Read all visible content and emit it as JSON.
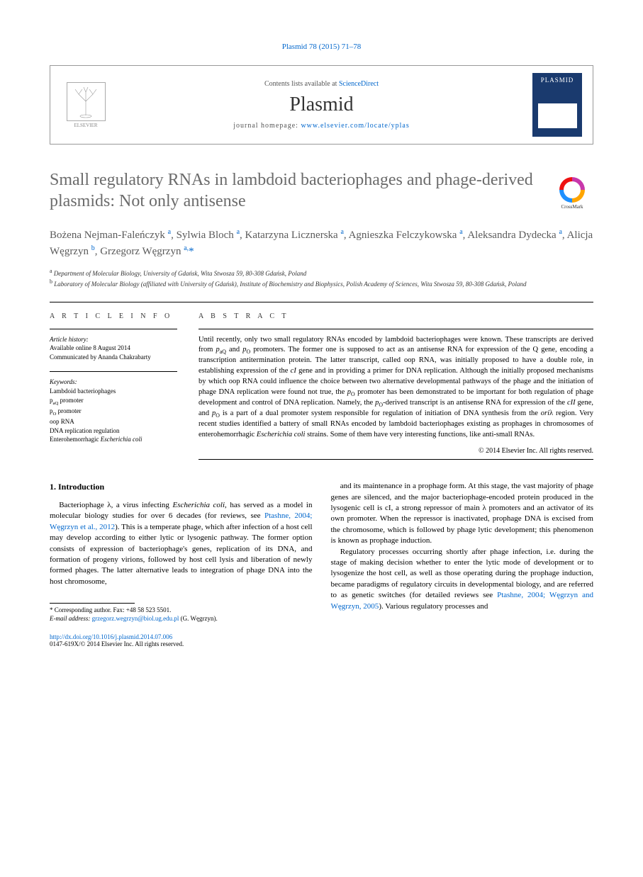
{
  "journal_ref": "Plasmid 78 (2015) 71–78",
  "header": {
    "elsevier": "ELSEVIER",
    "contents_prefix": "Contents lists available at ",
    "contents_link": "ScienceDirect",
    "journal_name": "Plasmid",
    "homepage_prefix": "journal homepage: ",
    "homepage_url": "www.elsevier.com/locate/yplas",
    "cover_title": "PLASMID"
  },
  "crossmark_label": "CrossMark",
  "title": "Small regulatory RNAs in lambdoid bacteriophages and phage-derived plasmids: Not only antisense",
  "authors_html": "Bożena Nejman-Faleńczyk <sup>a</sup>, Sylwia Bloch <sup>a</sup>, Katarzyna Licznerska <sup>a</sup>, Agnieszka Felczykowska <sup>a</sup>, Aleksandra Dydecka <sup>a</sup>, Alicja Węgrzyn <sup>b</sup>, Grzegorz Węgrzyn <sup>a,</sup><span class='star'>*</span>",
  "affiliations": {
    "a": "Department of Molecular Biology, University of Gdańsk, Wita Stwosza 59, 80-308 Gdańsk, Poland",
    "b": "Laboratory of Molecular Biology (affiliated with University of Gdańsk), Institute of Biochemistry and Biophysics, Polish Academy of Sciences, Wita Stwosza 59, 80-308 Gdańsk, Poland"
  },
  "info": {
    "heading": "A R T I C L E   I N F O",
    "history_label": "Article history:",
    "history_lines": [
      "Available online 8 August 2014",
      "Communicated by Ananda Chakrabarty"
    ],
    "keywords_label": "Keywords:",
    "keywords": [
      "Lambdoid bacteriophages",
      "p<sub>aQ</sub> promoter",
      "p<sub>O</sub> promoter",
      "oop RNA",
      "DNA replication regulation",
      "Enterohemorrhagic <i>Escherichia coli</i>"
    ]
  },
  "abstract": {
    "heading": "A B S T R A C T",
    "text": "Until recently, only two small regulatory RNAs encoded by lambdoid bacteriophages were known. These transcripts are derived from <i>p</i><sub>aQ</sub> and <i>p</i><sub>O</sub> promoters. The former one is supposed to act as an antisense RNA for expression of the Q gene, encoding a transcription antitermination protein. The latter transcript, called oop RNA, was initially proposed to have a double role, in establishing expression of the <i>cI</i> gene and in providing a primer for DNA replication. Although the initially proposed mechanisms by which oop RNA could influence the choice between two alternative developmental pathways of the phage and the initiation of phage DNA replication were found not true, the <i>p</i><sub>O</sub> promoter has been demonstrated to be important for both regulation of phage development and control of DNA replication. Namely, the <i>p</i><sub>O</sub>-derived transcript is an antisense RNA for expression of the <i>cII</i> gene, and <i>p</i><sub>O</sub> is a part of a dual promoter system responsible for regulation of initiation of DNA synthesis from the <i>ori</i>λ region. Very recent studies identified a battery of small RNAs encoded by lambdoid bacteriophages existing as prophages in chromosomes of enterohemorrhagic <i>Escherichia coli</i> strains. Some of them have very interesting functions, like anti-small RNAs.",
    "copyright": "© 2014 Elsevier Inc. All rights reserved."
  },
  "body": {
    "section_num": "1.",
    "section_title": "Introduction",
    "col1_p1": "Bacteriophage λ, a virus infecting <i>Escherichia coli</i>, has served as a model in molecular biology studies for over 6 decades (for reviews, see <span class='ref-link'>Ptashne, 2004; Węgrzyn et al., 2012</span>). This is a temperate phage, which after infection of a host cell may develop according to either lytic or lysogenic pathway. The former option consists of expression of bacteriophage's genes, replication of its DNA, and formation of progeny virions, followed by host cell lysis and liberation of newly formed phages. The latter alternative leads to integration of phage DNA into the host chromosome,",
    "col2_p1": "and its maintenance in a prophage form. At this stage, the vast majority of phage genes are silenced, and the major bacteriophage-encoded protein produced in the lysogenic cell is cI, a strong repressor of main λ promoters and an activator of its own promoter. When the repressor is inactivated, prophage DNA is excised from the chromosome, which is followed by phage lytic development; this phenomenon is known as prophage induction.",
    "col2_p2": "Regulatory processes occurring shortly after phage infection, i.e. during the stage of making decision whether to enter the lytic mode of development or to lysogenize the host cell, as well as those operating during the prophage induction, became paradigms of regulatory circuits in developmental biology, and are referred to as genetic switches (for detailed reviews see <span class='ref-link'>Ptashne, 2004; Węgrzyn and Węgrzyn, 2005</span>). Various regulatory processes and"
  },
  "footer": {
    "corr_label": "* Corresponding author. Fax: +48 58 523 5501.",
    "email_label": "E-mail address:",
    "email": "grzegorz.wegrzyn@biol.ug.edu.pl",
    "email_suffix": "(G. Węgrzyn).",
    "doi": "http://dx.doi.org/10.1016/j.plasmid.2014.07.006",
    "issn": "0147-619X/© 2014 Elsevier Inc. All rights reserved."
  },
  "colors": {
    "link": "#0066cc",
    "title_gray": "#6b6b6b",
    "cover_bg": "#1a3a6e"
  }
}
